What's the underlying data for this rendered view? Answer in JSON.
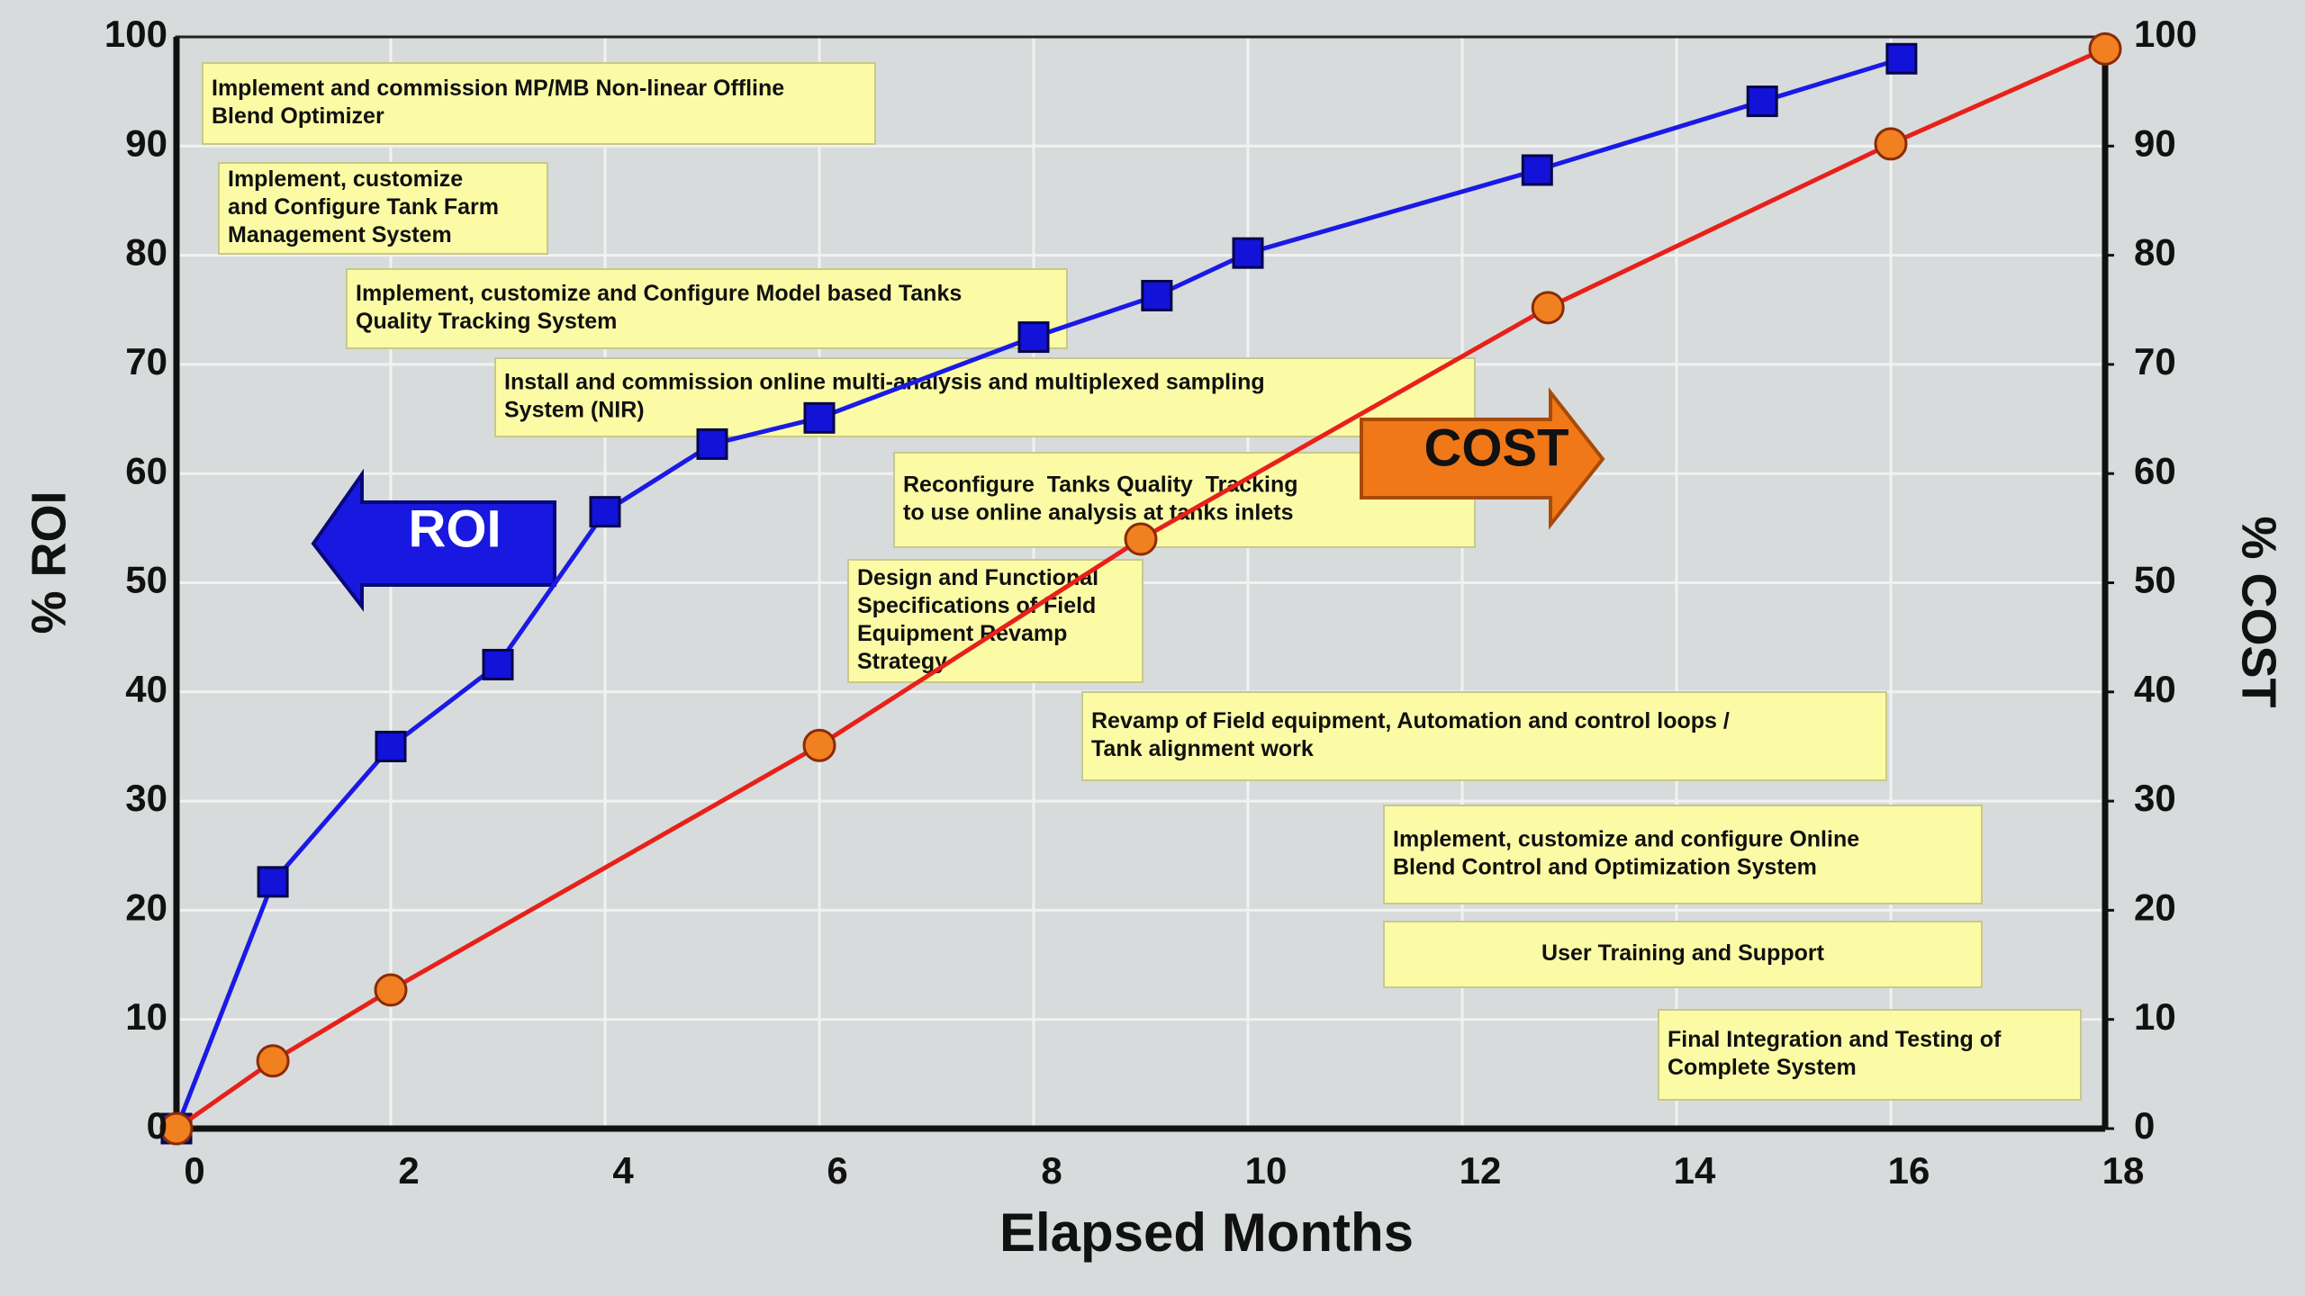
{
  "chart_data": {
    "type": "line",
    "x_label": "Elapsed Months",
    "y_label": "% ROI",
    "y2_label": "% COST",
    "xlim": [
      0,
      18
    ],
    "xticks": [
      0,
      2,
      4,
      6,
      8,
      10,
      12,
      14,
      16,
      18
    ],
    "ylim": [
      0,
      100
    ],
    "yticks": [
      0,
      10,
      20,
      30,
      40,
      50,
      60,
      70,
      80,
      90,
      100
    ],
    "y2lim": [
      0,
      100
    ],
    "y2ticks": [
      0,
      10,
      20,
      30,
      40,
      50,
      60,
      70,
      80,
      90,
      100
    ],
    "grid": true,
    "series": [
      {
        "name": "ROI",
        "color": "#1a1ae6",
        "marker": "square",
        "marker_color": "#1212d8",
        "x": [
          0,
          0.9,
          2,
          3,
          4,
          5,
          6,
          8,
          9.15,
          10,
          12.7,
          14.8,
          16.1
        ],
        "values": [
          0,
          22.6,
          35,
          42.5,
          56.5,
          62.7,
          65.1,
          72.5,
          76.3,
          80.2,
          87.8,
          94.1,
          98
        ]
      },
      {
        "name": "COST",
        "color": "#e8201a",
        "marker": "circle",
        "marker_color": "#f08020",
        "axis": "y2",
        "x": [
          0,
          0.9,
          2,
          6,
          9,
          12.8,
          16,
          18
        ],
        "values": [
          0,
          6.2,
          12.7,
          35.1,
          54,
          75.2,
          90.2,
          98.9
        ]
      }
    ],
    "annotations": [
      {
        "lines": [
          "Implement and commission MP/MB Non-linear Offline",
          "Blend Optimizer"
        ]
      },
      {
        "lines": [
          "Implement, customize",
          "and Configure Tank Farm",
          "Management System"
        ]
      },
      {
        "lines": [
          "Implement, customize and Configure Model based Tanks",
          "Quality Tracking System"
        ]
      },
      {
        "lines": [
          "Install and commission online multi-analysis and multiplexed sampling",
          "System (NIR)"
        ]
      },
      {
        "lines": [
          "Reconfigure  Tanks Quality  Tracking",
          "to use online analysis at tanks inlets"
        ]
      },
      {
        "lines": [
          "Design and Functional",
          "Specifications of Field",
          "Equipment Revamp",
          "Strategy"
        ]
      },
      {
        "lines": [
          "Revamp of Field equipment, Automation and control loops /",
          "Tank alignment work"
        ]
      },
      {
        "lines": [
          "Implement, customize and configure Online",
          "Blend Control and Optimization System"
        ]
      },
      {
        "lines": [
          "User Training and Support"
        ]
      },
      {
        "lines": [
          "Final Integration and Testing of",
          "Complete System"
        ]
      }
    ]
  }
}
